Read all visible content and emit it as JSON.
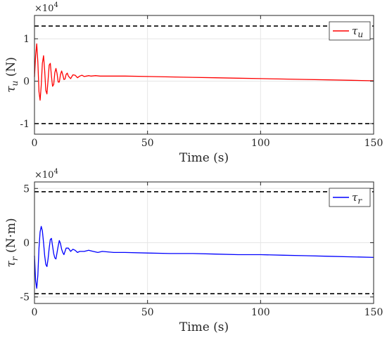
{
  "chart_data": [
    {
      "type": "line",
      "xlabel": "Time (s)",
      "ylabel": "τu (N)",
      "ylabel_symbol": "τ",
      "ylabel_sub": "u",
      "ylabel_unit": " (N)",
      "exponent_label": "×10",
      "exponent_power": "4",
      "xlim": [
        0,
        150
      ],
      "ylim": [
        -1.25,
        1.55
      ],
      "xticks": [
        0,
        50,
        100,
        150
      ],
      "yticks": [
        -1,
        0,
        1
      ],
      "grid": true,
      "legend_position": "top-right",
      "legend_symbol": "τ",
      "legend_sub": "u",
      "bounds": [
        1.3,
        -1.0
      ],
      "series": [
        {
          "name": "τu",
          "color": "#ff0000",
          "x": [
            0,
            0.5,
            1.0,
            1.5,
            2.0,
            2.5,
            3.0,
            3.5,
            4.0,
            4.5,
            5.0,
            5.5,
            6.0,
            6.5,
            7.0,
            7.5,
            8.0,
            8.5,
            9.0,
            9.5,
            10.0,
            10.5,
            11.0,
            11.5,
            12.0,
            12.5,
            13.0,
            13.5,
            14.0,
            14.5,
            15.0,
            16.0,
            17.0,
            18.0,
            19.0,
            20.0,
            21.0,
            22.0,
            23.0,
            24.0,
            25.0,
            27.0,
            29.0,
            31.0,
            35.0,
            40.0,
            50.0,
            60.0,
            70.0,
            80.0,
            90.0,
            100.0,
            110.0,
            120.0,
            130.0,
            140.0,
            150.0
          ],
          "y": [
            0.1,
            0.6,
            0.88,
            0.45,
            -0.25,
            -0.45,
            -0.1,
            0.42,
            0.6,
            0.25,
            -0.22,
            -0.3,
            0.02,
            0.38,
            0.42,
            0.12,
            -0.12,
            -0.08,
            0.2,
            0.3,
            0.18,
            -0.02,
            -0.02,
            0.16,
            0.24,
            0.15,
            0.04,
            0.05,
            0.16,
            0.19,
            0.12,
            0.06,
            0.15,
            0.14,
            0.08,
            0.12,
            0.14,
            0.11,
            0.12,
            0.13,
            0.12,
            0.13,
            0.12,
            0.12,
            0.12,
            0.12,
            0.11,
            0.1,
            0.09,
            0.08,
            0.07,
            0.06,
            0.05,
            0.04,
            0.03,
            0.02,
            0.01
          ]
        }
      ]
    },
    {
      "type": "line",
      "xlabel": "Time (s)",
      "ylabel": "τr (N·m)",
      "ylabel_symbol": "τ",
      "ylabel_sub": "r",
      "ylabel_unit": " (N·m)",
      "exponent_label": "×10",
      "exponent_power": "4",
      "xlim": [
        0,
        150
      ],
      "ylim": [
        -5.6,
        5.6
      ],
      "xticks": [
        0,
        50,
        100,
        150
      ],
      "yticks": [
        -5,
        0,
        5
      ],
      "grid": true,
      "legend_position": "top-right",
      "legend_symbol": "τ",
      "legend_sub": "r",
      "bounds": [
        4.7,
        -4.7
      ],
      "series": [
        {
          "name": "τr",
          "color": "#0000ff",
          "x": [
            0,
            0.5,
            1.0,
            1.5,
            2.0,
            2.5,
            3.0,
            3.5,
            4.0,
            4.5,
            5.0,
            5.5,
            6.0,
            6.5,
            7.0,
            7.5,
            8.0,
            8.5,
            9.0,
            9.5,
            10.0,
            10.5,
            11.0,
            11.5,
            12.0,
            12.5,
            13.0,
            13.5,
            14.0,
            15.0,
            16.0,
            17.0,
            18.0,
            19.0,
            20.0,
            22.0,
            24.0,
            26.0,
            28.0,
            30.0,
            35.0,
            40.0,
            50.0,
            60.0,
            70.0,
            80.0,
            90.0,
            100.0,
            110.0,
            120.0,
            130.0,
            140.0,
            150.0
          ],
          "y": [
            -1.2,
            -3.5,
            -4.2,
            -3.0,
            -0.5,
            1.0,
            1.5,
            1.1,
            0.0,
            -1.2,
            -2.0,
            -2.2,
            -1.5,
            -0.5,
            0.3,
            0.4,
            -0.3,
            -1.0,
            -1.4,
            -1.5,
            -0.9,
            -0.3,
            0.2,
            -0.1,
            -0.6,
            -0.9,
            -1.1,
            -0.8,
            -0.5,
            -0.5,
            -0.8,
            -0.6,
            -0.7,
            -0.9,
            -0.8,
            -0.8,
            -0.7,
            -0.8,
            -0.9,
            -0.8,
            -0.9,
            -0.9,
            -0.95,
            -1.0,
            -1.0,
            -1.05,
            -1.1,
            -1.1,
            -1.15,
            -1.2,
            -1.25,
            -1.3,
            -1.35
          ]
        }
      ]
    }
  ]
}
